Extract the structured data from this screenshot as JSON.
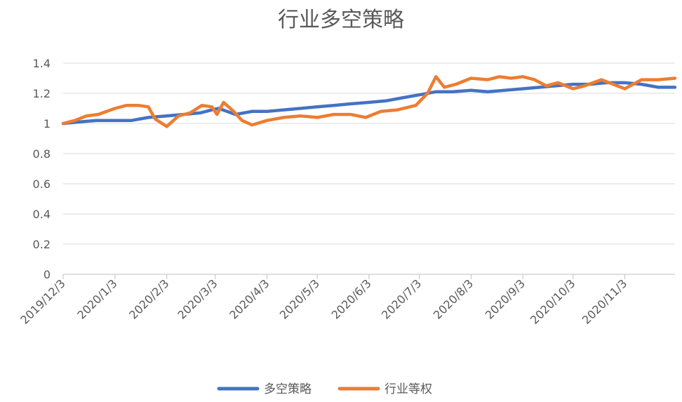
{
  "chart_data": {
    "type": "line",
    "title": "行业多空策略",
    "xlabel": "",
    "ylabel": "",
    "ylim": [
      0,
      1.4
    ],
    "yticks": [
      "0",
      "0.2",
      "0.4",
      "0.6",
      "0.8",
      "1",
      "1.2",
      "1.4"
    ],
    "x_tick_labels": [
      "2019/12/3",
      "2020/1/3",
      "2020/2/3",
      "2020/3/3",
      "2020/4/3",
      "2020/5/3",
      "2020/6/3",
      "2020/7/3",
      "2020/8/3",
      "2020/9/3",
      "2020/10/3",
      "2020/11/3"
    ],
    "x_range": [
      "2019-12-03",
      "2020-12-03"
    ],
    "grid": "horizontal",
    "legend_position": "bottom",
    "series": [
      {
        "name": "多空策略",
        "color": "#4472C4",
        "points": [
          [
            "2019-12-03",
            1.0
          ],
          [
            "2019-12-13",
            1.01
          ],
          [
            "2019-12-23",
            1.02
          ],
          [
            "2020-01-03",
            1.02
          ],
          [
            "2020-01-13",
            1.02
          ],
          [
            "2020-01-23",
            1.04
          ],
          [
            "2020-02-03",
            1.05
          ],
          [
            "2020-02-13",
            1.06
          ],
          [
            "2020-02-23",
            1.07
          ],
          [
            "2020-03-01",
            1.09
          ],
          [
            "2020-03-05",
            1.1
          ],
          [
            "2020-03-10",
            1.08
          ],
          [
            "2020-03-15",
            1.06
          ],
          [
            "2020-03-25",
            1.08
          ],
          [
            "2020-04-03",
            1.08
          ],
          [
            "2020-04-13",
            1.09
          ],
          [
            "2020-04-23",
            1.1
          ],
          [
            "2020-05-03",
            1.11
          ],
          [
            "2020-05-13",
            1.12
          ],
          [
            "2020-05-23",
            1.13
          ],
          [
            "2020-06-03",
            1.14
          ],
          [
            "2020-06-13",
            1.15
          ],
          [
            "2020-06-23",
            1.17
          ],
          [
            "2020-07-03",
            1.19
          ],
          [
            "2020-07-13",
            1.21
          ],
          [
            "2020-07-23",
            1.21
          ],
          [
            "2020-08-03",
            1.22
          ],
          [
            "2020-08-13",
            1.21
          ],
          [
            "2020-08-23",
            1.22
          ],
          [
            "2020-09-03",
            1.23
          ],
          [
            "2020-09-13",
            1.24
          ],
          [
            "2020-09-23",
            1.25
          ],
          [
            "2020-10-03",
            1.26
          ],
          [
            "2020-10-13",
            1.26
          ],
          [
            "2020-10-23",
            1.27
          ],
          [
            "2020-11-03",
            1.27
          ],
          [
            "2020-11-13",
            1.26
          ],
          [
            "2020-11-23",
            1.24
          ],
          [
            "2020-12-03",
            1.24
          ]
        ]
      },
      {
        "name": "行业等权",
        "color": "#ED7D31",
        "points": [
          [
            "2019-12-03",
            1.0
          ],
          [
            "2019-12-10",
            1.02
          ],
          [
            "2019-12-17",
            1.05
          ],
          [
            "2019-12-24",
            1.06
          ],
          [
            "2020-01-03",
            1.1
          ],
          [
            "2020-01-10",
            1.12
          ],
          [
            "2020-01-17",
            1.12
          ],
          [
            "2020-01-23",
            1.11
          ],
          [
            "2020-01-27",
            1.03
          ],
          [
            "2020-02-03",
            0.98
          ],
          [
            "2020-02-10",
            1.05
          ],
          [
            "2020-02-17",
            1.07
          ],
          [
            "2020-02-24",
            1.12
          ],
          [
            "2020-03-01",
            1.11
          ],
          [
            "2020-03-04",
            1.06
          ],
          [
            "2020-03-08",
            1.14
          ],
          [
            "2020-03-14",
            1.08
          ],
          [
            "2020-03-19",
            1.02
          ],
          [
            "2020-03-25",
            0.99
          ],
          [
            "2020-04-03",
            1.02
          ],
          [
            "2020-04-13",
            1.04
          ],
          [
            "2020-04-23",
            1.05
          ],
          [
            "2020-05-03",
            1.04
          ],
          [
            "2020-05-13",
            1.06
          ],
          [
            "2020-05-23",
            1.06
          ],
          [
            "2020-06-01",
            1.04
          ],
          [
            "2020-06-10",
            1.08
          ],
          [
            "2020-06-20",
            1.09
          ],
          [
            "2020-07-01",
            1.12
          ],
          [
            "2020-07-08",
            1.2
          ],
          [
            "2020-07-13",
            1.31
          ],
          [
            "2020-07-18",
            1.24
          ],
          [
            "2020-07-25",
            1.26
          ],
          [
            "2020-08-03",
            1.3
          ],
          [
            "2020-08-13",
            1.29
          ],
          [
            "2020-08-20",
            1.31
          ],
          [
            "2020-08-27",
            1.3
          ],
          [
            "2020-09-03",
            1.31
          ],
          [
            "2020-09-10",
            1.29
          ],
          [
            "2020-09-17",
            1.25
          ],
          [
            "2020-09-24",
            1.27
          ],
          [
            "2020-10-03",
            1.23
          ],
          [
            "2020-10-10",
            1.25
          ],
          [
            "2020-10-20",
            1.29
          ],
          [
            "2020-11-03",
            1.23
          ],
          [
            "2020-11-13",
            1.29
          ],
          [
            "2020-11-23",
            1.29
          ],
          [
            "2020-12-03",
            1.3
          ]
        ]
      }
    ]
  }
}
